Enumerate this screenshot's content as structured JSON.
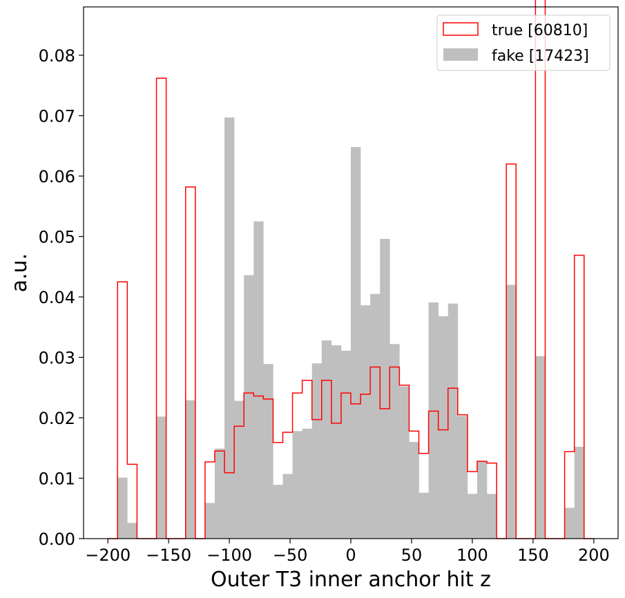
{
  "chart_data": {
    "type": "bar",
    "xlabel": "Outer T3 inner anchor hit z",
    "ylabel": "a.u.",
    "xlim": [
      -220,
      220
    ],
    "ylim": [
      0,
      0.088
    ],
    "xticks": [
      -200,
      -150,
      -100,
      -50,
      0,
      50,
      100,
      150,
      200
    ],
    "xtick_labels": [
      "−200",
      "−150",
      "−100",
      "−50",
      "0",
      "50",
      "100",
      "150",
      "200"
    ],
    "yticks": [
      0,
      0.01,
      0.02,
      0.03,
      0.04,
      0.05,
      0.06,
      0.07,
      0.08
    ],
    "ytick_labels": [
      "0.00",
      "0.01",
      "0.02",
      "0.03",
      "0.04",
      "0.05",
      "0.06",
      "0.07",
      "0.08"
    ],
    "grid": false,
    "legend_position": "top-right",
    "bin_edges": [
      -200,
      -192,
      -184,
      -176,
      -168,
      -160,
      -152,
      -144,
      -136,
      -128,
      -120,
      -112,
      -104,
      -96,
      -88,
      -80,
      -72,
      -64,
      -56,
      -48,
      -40,
      -32,
      -24,
      -16,
      -8,
      0,
      8,
      16,
      24,
      32,
      40,
      48,
      56,
      64,
      72,
      80,
      88,
      96,
      104,
      112,
      120,
      128,
      136,
      144,
      152,
      160,
      168,
      176,
      184,
      192,
      200
    ],
    "series": [
      {
        "name": "true [60810]",
        "style": "step",
        "color": "#ff0000",
        "values": [
          0,
          0.0425,
          0.0123,
          0,
          0,
          0.0762,
          0,
          0,
          0.0582,
          0,
          0.0127,
          0.0145,
          0.0109,
          0.0186,
          0.0241,
          0.0236,
          0.0231,
          0.0159,
          0.0176,
          0.0241,
          0.0262,
          0.0197,
          0.0262,
          0.0191,
          0.0241,
          0.0223,
          0.0239,
          0.0284,
          0.0215,
          0.0284,
          0.0254,
          0.0178,
          0.0141,
          0.0211,
          0.018,
          0.0249,
          0.0205,
          0.0111,
          0.0128,
          0.0125,
          0,
          0.062,
          0,
          0,
          0.0895,
          0,
          0,
          0.0144,
          0.0469,
          0
        ]
      },
      {
        "name": "fake [17423]",
        "style": "filled",
        "color": "#bfbfbf",
        "values": [
          0,
          0.0101,
          0.0026,
          0,
          0,
          0.0202,
          0,
          0,
          0.0229,
          0,
          0.0059,
          0.0149,
          0.0697,
          0.0228,
          0.0436,
          0.0525,
          0.0289,
          0.0089,
          0.0107,
          0.0178,
          0.0182,
          0.029,
          0.0328,
          0.032,
          0.0311,
          0.0648,
          0.0386,
          0.0405,
          0.0496,
          0.0322,
          0.0252,
          0.016,
          0.0076,
          0.0391,
          0.0368,
          0.0389,
          0.0203,
          0.0074,
          0.0128,
          0.0074,
          0,
          0.042,
          0,
          0,
          0.0302,
          0,
          0,
          0.0051,
          0.0152,
          0
        ]
      }
    ]
  }
}
